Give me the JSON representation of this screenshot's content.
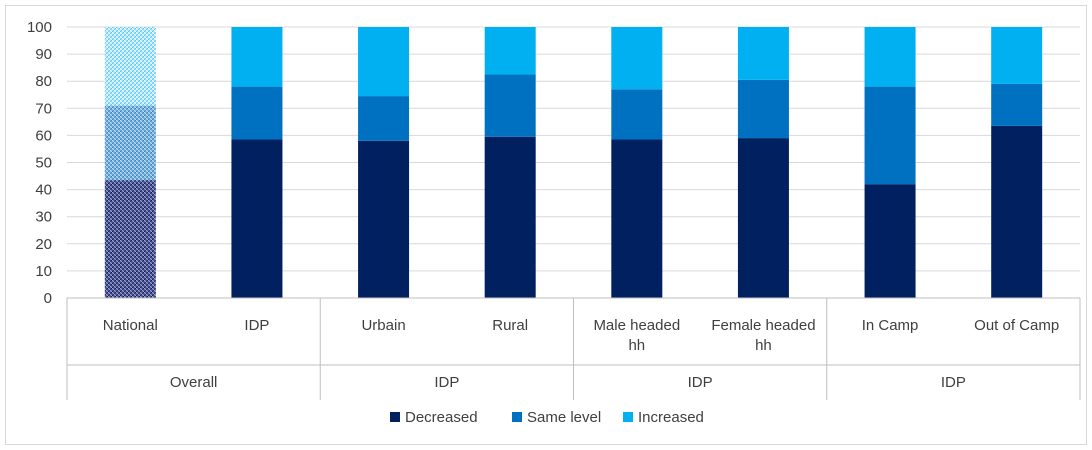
{
  "chart_data": {
    "type": "bar",
    "stacked": true,
    "ylim": [
      0,
      100
    ],
    "yticks": [
      0,
      10,
      20,
      30,
      40,
      50,
      60,
      70,
      80,
      90,
      100
    ],
    "grid": true,
    "legend_position": "bottom",
    "categories": [
      "National",
      "IDP",
      "Urbain",
      "Rural",
      "Male headed hh",
      "Female headed hh",
      "In Camp",
      "Out of Camp"
    ],
    "category_lines": [
      [
        "National"
      ],
      [
        "IDP"
      ],
      [
        "Urbain"
      ],
      [
        "Rural"
      ],
      [
        "Male headed",
        "hh"
      ],
      [
        "Female headed",
        "hh"
      ],
      [
        "In Camp"
      ],
      [
        "Out of Camp"
      ]
    ],
    "groups": [
      {
        "label": "Overall",
        "count": 2
      },
      {
        "label": "IDP",
        "count": 2
      },
      {
        "label": "IDP",
        "count": 2
      },
      {
        "label": "IDP",
        "count": 2
      }
    ],
    "series": [
      {
        "name": "Decreased",
        "color": "#002060",
        "values": [
          43.5,
          58.5,
          58,
          59.5,
          58.5,
          59,
          42,
          63.5
        ]
      },
      {
        "name": "Same level",
        "color": "#0070C0",
        "values": [
          27.5,
          19.5,
          16.5,
          23,
          18.5,
          21.5,
          36,
          15.5
        ]
      },
      {
        "name": "Increased",
        "color": "#00B0F0",
        "values": [
          29,
          22,
          25.5,
          17.5,
          23,
          19.5,
          22,
          21
        ]
      }
    ],
    "patterned_category": "National"
  }
}
